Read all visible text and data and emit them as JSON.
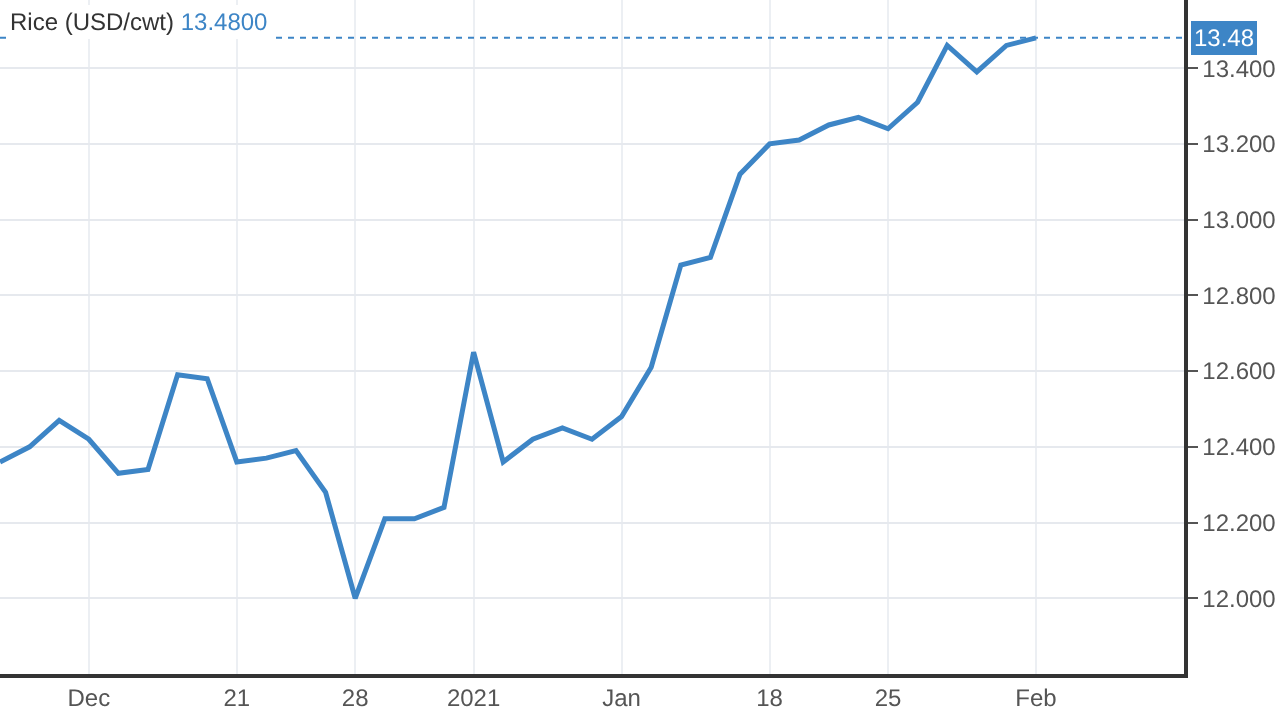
{
  "chart_data": {
    "type": "line",
    "title": "Rice (USD/cwt)",
    "subtitle": "13.4800",
    "categories": [
      null,
      null,
      null,
      "Dec",
      null,
      null,
      null,
      null,
      "21",
      null,
      null,
      null,
      "28",
      null,
      null,
      null,
      "2021",
      null,
      null,
      null,
      null,
      "Jan",
      null,
      null,
      null,
      null,
      "18",
      null,
      null,
      null,
      "25",
      null,
      null,
      null,
      null,
      "Feb"
    ],
    "series": [
      {
        "color": "#3d85c6",
        "values": [
          12.36,
          12.4,
          12.47,
          12.42,
          12.33,
          12.34,
          12.59,
          12.58,
          12.36,
          12.37,
          12.39,
          12.28,
          12.0,
          12.21,
          12.21,
          12.24,
          12.65,
          12.36,
          12.42,
          12.45,
          12.42,
          12.48,
          12.61,
          12.88,
          12.9,
          13.12,
          13.2,
          13.21,
          13.25,
          13.27,
          13.24,
          13.31,
          13.46,
          13.39,
          13.46,
          13.48
        ]
      }
    ],
    "ylim": [
      11.8,
      13.58
    ],
    "yticks": [
      {
        "value": 12.0,
        "label": "12.000"
      },
      {
        "value": 12.2,
        "label": "12.200"
      },
      {
        "value": 12.4,
        "label": "12.400"
      },
      {
        "value": 12.6,
        "label": "12.600"
      },
      {
        "value": 12.8,
        "label": "12.800"
      },
      {
        "value": 13.0,
        "label": "13.000"
      },
      {
        "value": 13.2,
        "label": "13.200"
      },
      {
        "value": 13.4,
        "label": "13.400"
      }
    ],
    "ref_lines": [
      {
        "axis": "y",
        "value": 13.48,
        "label": "13.48",
        "color": "#3d85c6",
        "line_style": "dotted"
      }
    ],
    "grid": true,
    "marker": "none",
    "line_style": "solid"
  }
}
